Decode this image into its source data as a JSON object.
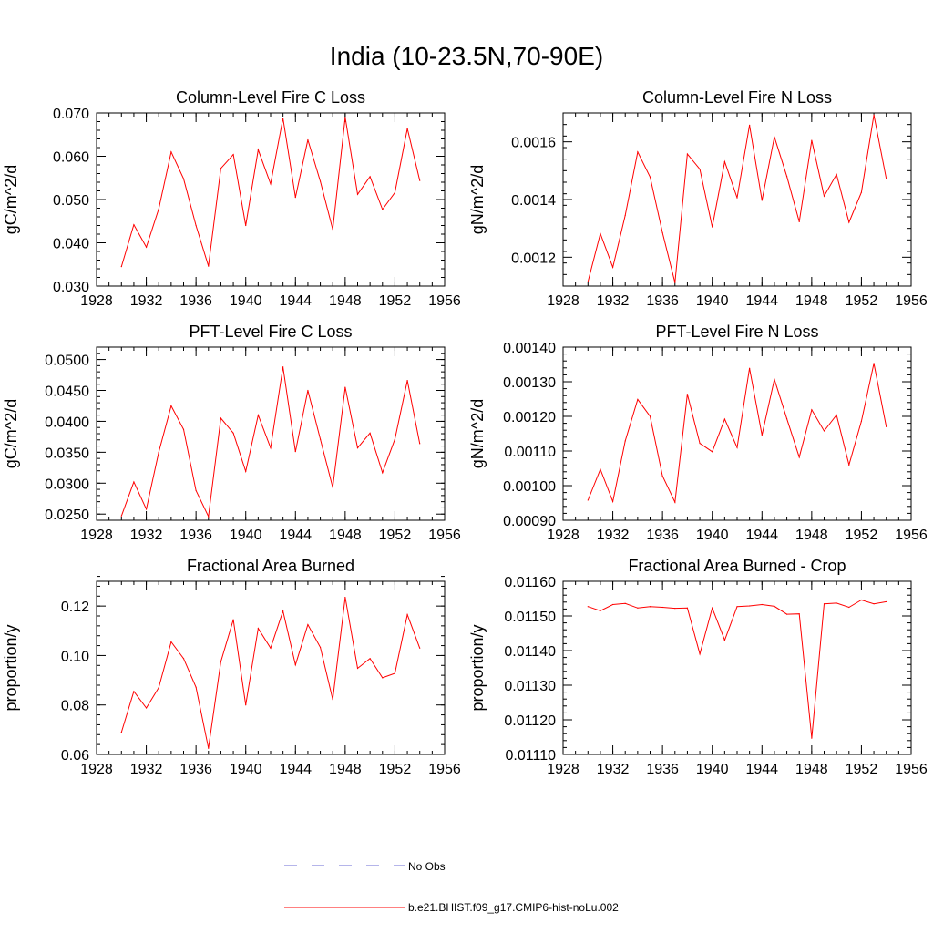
{
  "page_title": "India (10-23.5N,70-90E)",
  "colors": {
    "model_line": "#ff0000",
    "obs_line": "#6b6bd6",
    "axis": "#000000"
  },
  "legend": {
    "obs_label": "No Obs",
    "model_label": "b.e21.BHIST.f09_g17.CMIP6-hist-noLu.002"
  },
  "chart_data": [
    {
      "type": "line",
      "title": "Column-Level Fire C Loss",
      "xlabel": "",
      "ylabel": "gC/m^2/d",
      "xlim": [
        1928,
        1956
      ],
      "ylim": [
        0.03,
        0.07
      ],
      "xticks": [
        1928,
        1932,
        1936,
        1940,
        1944,
        1948,
        1952,
        1956
      ],
      "yticks": [
        "0.030",
        "0.040",
        "0.050",
        "0.060",
        "0.070"
      ],
      "y_minor": 0.002,
      "x": [
        1930,
        1931,
        1932,
        1933,
        1934,
        1935,
        1936,
        1937,
        1938,
        1939,
        1940,
        1941,
        1942,
        1943,
        1944,
        1945,
        1946,
        1947,
        1948,
        1949,
        1950,
        1951,
        1952,
        1953,
        1954
      ],
      "values": [
        0.0345,
        0.0442,
        0.039,
        0.0478,
        0.061,
        0.0548,
        0.044,
        0.0346,
        0.0572,
        0.0604,
        0.044,
        0.0615,
        0.0536,
        0.0688,
        0.0505,
        0.0638,
        0.0542,
        0.0431,
        0.069,
        0.0512,
        0.0553,
        0.0477,
        0.0516,
        0.0664,
        0.0544
      ]
    },
    {
      "type": "line",
      "title": "Column-Level Fire N Loss",
      "xlabel": "",
      "ylabel": "gN/m^2/d",
      "xlim": [
        1928,
        1956
      ],
      "ylim": [
        0.0011,
        0.0017
      ],
      "xticks": [
        1928,
        1932,
        1936,
        1940,
        1944,
        1948,
        1952,
        1956
      ],
      "yticks": [
        "0.0012",
        "0.0014",
        "0.0016"
      ],
      "y_minor": 4e-05,
      "x": [
        1930,
        1931,
        1932,
        1933,
        1934,
        1935,
        1936,
        1937,
        1938,
        1939,
        1940,
        1941,
        1942,
        1943,
        1944,
        1945,
        1946,
        1947,
        1948,
        1949,
        1950,
        1951,
        1952,
        1953,
        1954
      ],
      "values": [
        0.001115,
        0.001282,
        0.001165,
        0.001345,
        0.001565,
        0.001478,
        0.001285,
        0.001112,
        0.001558,
        0.001505,
        0.001305,
        0.001531,
        0.001406,
        0.001658,
        0.001397,
        0.001617,
        0.00148,
        0.001323,
        0.001605,
        0.001412,
        0.001487,
        0.001321,
        0.001425,
        0.001693,
        0.001472
      ]
    },
    {
      "type": "line",
      "title": "PFT-Level Fire C Loss",
      "xlabel": "",
      "ylabel": "gC/m^2/d",
      "xlim": [
        1928,
        1956
      ],
      "ylim": [
        0.024,
        0.052
      ],
      "xticks": [
        1928,
        1932,
        1936,
        1940,
        1944,
        1948,
        1952,
        1956
      ],
      "yticks": [
        "0.0250",
        "0.0300",
        "0.0350",
        "0.0400",
        "0.0450",
        "0.0500"
      ],
      "y_minor": 0.001,
      "x": [
        1930,
        1931,
        1932,
        1933,
        1934,
        1935,
        1936,
        1937,
        1938,
        1939,
        1940,
        1941,
        1942,
        1943,
        1944,
        1945,
        1946,
        1947,
        1948,
        1949,
        1950,
        1951,
        1952,
        1953,
        1954
      ],
      "values": [
        0.0247,
        0.0302,
        0.0258,
        0.035,
        0.0425,
        0.0387,
        0.0288,
        0.0246,
        0.0405,
        0.0381,
        0.0319,
        0.041,
        0.0357,
        0.0488,
        0.0351,
        0.045,
        0.0371,
        0.0293,
        0.0455,
        0.0357,
        0.0381,
        0.0317,
        0.0371,
        0.0466,
        0.0364
      ]
    },
    {
      "type": "line",
      "title": "PFT-Level Fire N Loss",
      "xlabel": "",
      "ylabel": "gN/m^2/d",
      "xlim": [
        1928,
        1956
      ],
      "ylim": [
        0.0009,
        0.0014
      ],
      "xticks": [
        1928,
        1932,
        1936,
        1940,
        1944,
        1948,
        1952,
        1956
      ],
      "yticks": [
        "0.00090",
        "0.00100",
        "0.00110",
        "0.00120",
        "0.00130",
        "0.00140"
      ],
      "y_minor": 2e-05,
      "x": [
        1930,
        1931,
        1932,
        1933,
        1934,
        1935,
        1936,
        1937,
        1938,
        1939,
        1940,
        1941,
        1942,
        1943,
        1944,
        1945,
        1946,
        1947,
        1948,
        1949,
        1950,
        1951,
        1952,
        1953,
        1954
      ],
      "values": [
        0.000958,
        0.001047,
        0.000954,
        0.001129,
        0.001249,
        0.0012,
        0.001028,
        0.000952,
        0.001264,
        0.001122,
        0.001098,
        0.001192,
        0.00111,
        0.001339,
        0.001146,
        0.001307,
        0.001193,
        0.001082,
        0.001219,
        0.001158,
        0.001204,
        0.00106,
        0.001186,
        0.001353,
        0.00117
      ]
    },
    {
      "type": "line",
      "title": "Fractional Area Burned",
      "xlabel": "",
      "ylabel": "proportion/y",
      "xlim": [
        1928,
        1956
      ],
      "ylim": [
        0.06,
        0.13
      ],
      "xticks": [
        1928,
        1932,
        1936,
        1940,
        1944,
        1948,
        1952,
        1956
      ],
      "yticks": [
        "0.06",
        "0.08",
        "0.10",
        "0.12"
      ],
      "y_minor": 0.004,
      "x": [
        1930,
        1931,
        1932,
        1933,
        1934,
        1935,
        1936,
        1937,
        1938,
        1939,
        1940,
        1941,
        1942,
        1943,
        1944,
        1945,
        1946,
        1947,
        1948,
        1949,
        1950,
        1951,
        1952,
        1953,
        1954
      ],
      "values": [
        0.069,
        0.0855,
        0.0788,
        0.087,
        0.1055,
        0.0988,
        0.0872,
        0.0625,
        0.0975,
        0.1145,
        0.08,
        0.111,
        0.103,
        0.118,
        0.0962,
        0.1125,
        0.1033,
        0.0822,
        0.1235,
        0.0948,
        0.0988,
        0.091,
        0.0928,
        0.1165,
        0.103
      ]
    },
    {
      "type": "line",
      "title": "Fractional Area Burned - Crop",
      "xlabel": "",
      "ylabel": "proportion/y",
      "xlim": [
        1928,
        1956
      ],
      "ylim": [
        0.0111,
        0.0116
      ],
      "xticks": [
        1928,
        1932,
        1936,
        1940,
        1944,
        1948,
        1952,
        1956
      ],
      "yticks": [
        "0.01110",
        "0.01120",
        "0.01130",
        "0.01140",
        "0.01150",
        "0.01160"
      ],
      "y_minor": 2e-05,
      "x": [
        1930,
        1931,
        1932,
        1933,
        1934,
        1935,
        1936,
        1937,
        1938,
        1939,
        1940,
        1941,
        1942,
        1943,
        1944,
        1945,
        1946,
        1947,
        1948,
        1949,
        1950,
        1951,
        1952,
        1953,
        1954
      ],
      "values": [
        0.011527,
        0.011515,
        0.011533,
        0.011536,
        0.011523,
        0.011527,
        0.011525,
        0.011522,
        0.011523,
        0.01139,
        0.011523,
        0.01143,
        0.011527,
        0.011529,
        0.011533,
        0.011528,
        0.011505,
        0.011506,
        0.011147,
        0.011535,
        0.011537,
        0.011525,
        0.011546,
        0.011535,
        0.011541
      ]
    }
  ]
}
